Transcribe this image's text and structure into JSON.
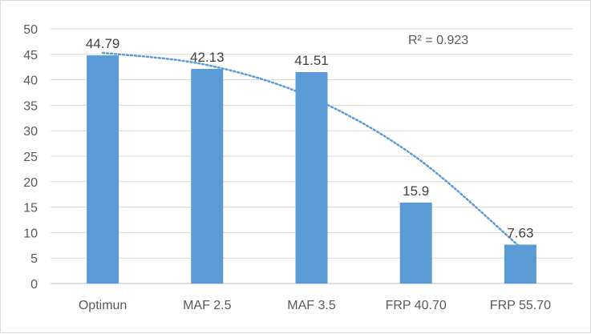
{
  "chart_data": {
    "type": "bar",
    "categories": [
      "Optimun",
      "MAF 2.5",
      "MAF 3.5",
      "FRP 40.70",
      "FRP 55.70"
    ],
    "values": [
      44.79,
      42.13,
      41.51,
      15.9,
      7.63
    ],
    "data_labels": [
      "44.79",
      "42.13",
      "41.51",
      "15.9",
      "7.63"
    ],
    "ylim": [
      0,
      50
    ],
    "yticks": [
      0,
      5,
      10,
      15,
      20,
      25,
      30,
      35,
      40,
      45,
      50
    ],
    "grid": true,
    "legend": "none",
    "bar_color": "#5b9bd5",
    "trendline": {
      "type": "polynomial",
      "order": 2,
      "color": "#5b9bd5",
      "style": "dotted",
      "r2_label": "R² = 0.923",
      "values": [
        45.3,
        42.9,
        36.5,
        24.8,
        7.1
      ]
    }
  }
}
